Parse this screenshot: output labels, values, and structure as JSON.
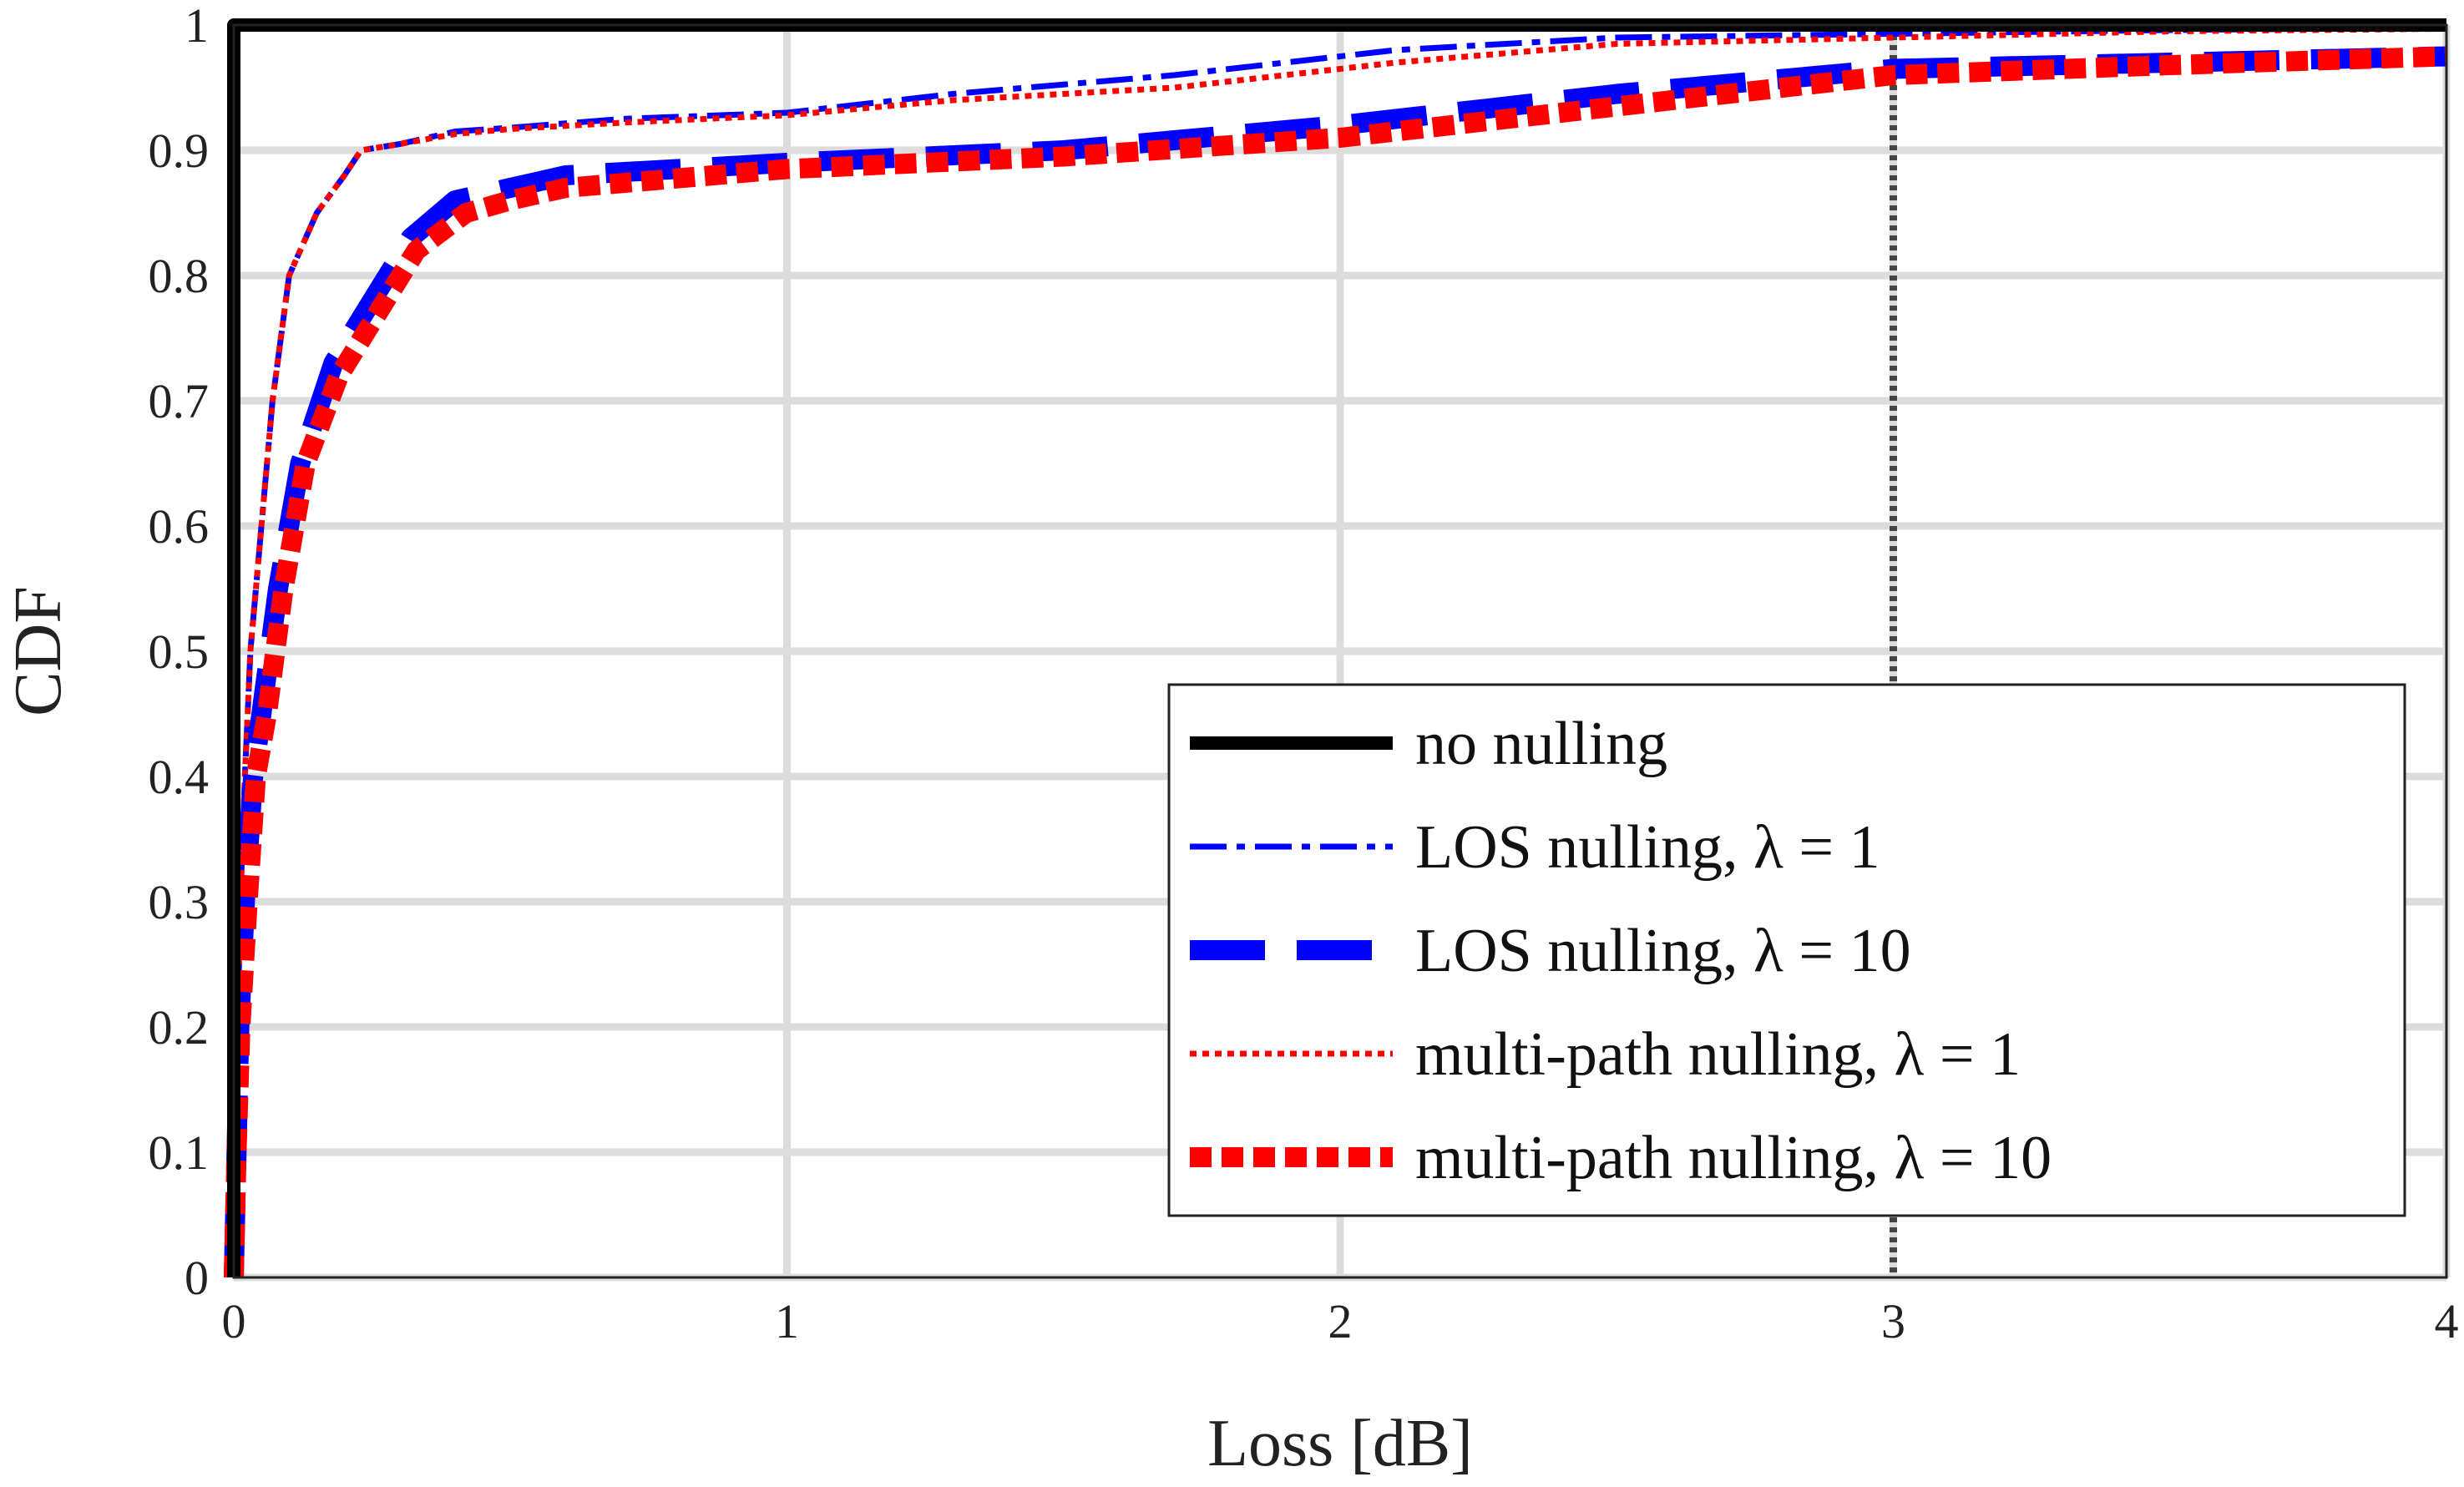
{
  "chart_data": {
    "type": "line",
    "xlabel": "Loss [dB]",
    "ylabel": "CDF",
    "xlim": [
      0,
      4
    ],
    "ylim": [
      0,
      1
    ],
    "x_ticks": [
      0,
      1,
      2,
      3,
      4
    ],
    "y_ticks": [
      0,
      0.1,
      0.2,
      0.3,
      0.4,
      0.5,
      0.6,
      0.7,
      0.8,
      0.9,
      1
    ],
    "x_tick_labels": [
      "0",
      "1",
      "2",
      "3",
      "4"
    ],
    "y_tick_labels": [
      "0",
      "0.1",
      "0.2",
      "0.3",
      "0.4",
      "0.5",
      "0.6",
      "0.7",
      "0.8",
      "0.9",
      "1"
    ],
    "grid": true,
    "legend_position": "bottom-right",
    "reference_line": {
      "x": 3,
      "color": "#444444"
    },
    "series": [
      {
        "name": "no nulling",
        "color": "#000000",
        "style": "solid-thick",
        "x": [
          0,
          0,
          4
        ],
        "y": [
          0,
          1,
          1
        ]
      },
      {
        "name": "LOS nulling, λ = 1",
        "color": "#0000ff",
        "style": "dash-dot",
        "x": [
          0,
          0.003,
          0.007,
          0.012,
          0.02,
          0.03,
          0.05,
          0.07,
          0.1,
          0.15,
          0.2,
          0.23,
          0.3,
          0.4,
          0.5,
          0.7,
          1.0,
          1.3,
          1.7,
          1.9,
          2.1,
          2.5,
          3.0,
          3.5,
          4.0
        ],
        "y": [
          0,
          0.1,
          0.2,
          0.3,
          0.4,
          0.5,
          0.6,
          0.7,
          0.8,
          0.85,
          0.88,
          0.9,
          0.905,
          0.915,
          0.918,
          0.925,
          0.93,
          0.945,
          0.96,
          0.97,
          0.98,
          0.99,
          0.993,
          0.996,
          0.998
        ]
      },
      {
        "name": "LOS nulling, λ = 10",
        "color": "#0000ff",
        "style": "dash-thick",
        "x": [
          0,
          0.005,
          0.01,
          0.02,
          0.035,
          0.05,
          0.08,
          0.12,
          0.18,
          0.25,
          0.32,
          0.4,
          0.5,
          0.6,
          1.0,
          1.5,
          2.0,
          2.5,
          3.0,
          3.5,
          4.0
        ],
        "y": [
          0,
          0.1,
          0.2,
          0.3,
          0.4,
          0.45,
          0.55,
          0.65,
          0.73,
          0.78,
          0.83,
          0.86,
          0.87,
          0.88,
          0.89,
          0.9,
          0.92,
          0.945,
          0.965,
          0.97,
          0.975
        ]
      },
      {
        "name": "multi-path nulling, λ = 1",
        "color": "#ff0000",
        "style": "dotted",
        "x": [
          0,
          0.003,
          0.007,
          0.012,
          0.02,
          0.03,
          0.05,
          0.07,
          0.1,
          0.15,
          0.2,
          0.23,
          0.3,
          0.4,
          0.5,
          0.7,
          1.0,
          1.3,
          1.7,
          1.9,
          2.1,
          2.5,
          3.0,
          3.5,
          4.0
        ],
        "y": [
          0,
          0.1,
          0.2,
          0.3,
          0.4,
          0.5,
          0.6,
          0.7,
          0.8,
          0.85,
          0.88,
          0.9,
          0.905,
          0.913,
          0.917,
          0.922,
          0.928,
          0.94,
          0.95,
          0.96,
          0.97,
          0.985,
          0.99,
          0.995,
          0.997
        ]
      },
      {
        "name": "multi-path nulling, λ = 10",
        "color": "#ff0000",
        "style": "dotted-thick",
        "x": [
          0,
          0.005,
          0.012,
          0.025,
          0.04,
          0.06,
          0.09,
          0.13,
          0.19,
          0.26,
          0.33,
          0.42,
          0.5,
          0.6,
          1.0,
          1.5,
          2.0,
          2.5,
          3.0,
          3.5,
          4.0
        ],
        "y": [
          0,
          0.1,
          0.2,
          0.3,
          0.4,
          0.45,
          0.55,
          0.65,
          0.72,
          0.77,
          0.82,
          0.85,
          0.86,
          0.87,
          0.885,
          0.895,
          0.91,
          0.935,
          0.96,
          0.968,
          0.975
        ]
      }
    ]
  }
}
